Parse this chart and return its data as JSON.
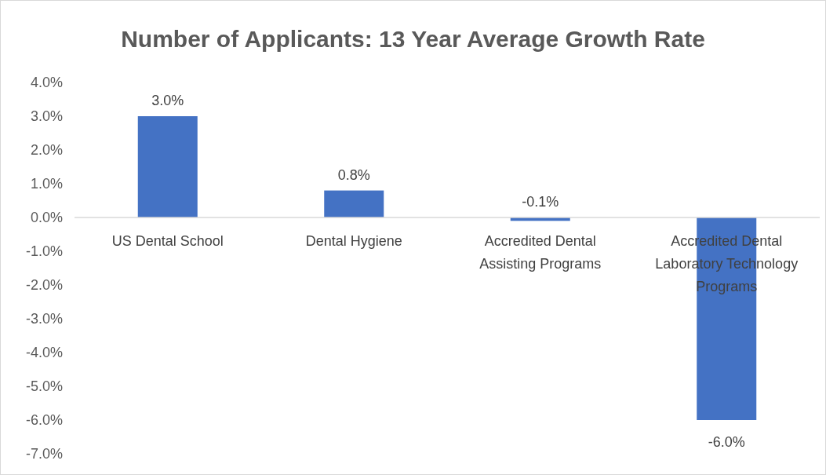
{
  "chart_data": {
    "type": "bar",
    "title": "Number of Applicants: 13 Year Average Growth Rate",
    "categories": [
      "US Dental School",
      "Dental Hygiene",
      "Accredited Dental Assisting Programs",
      "Accredited Dental Laboratory Technology Programs"
    ],
    "values": [
      3.0,
      0.8,
      -0.1,
      -6.0
    ],
    "color": "#4472c4",
    "value_labels": [
      "3.0%",
      "0.8%",
      "-0.1%",
      "-6.0%"
    ],
    "ylim": [
      -7,
      4
    ],
    "yticks": [
      {
        "value": 4,
        "label": "4.0%"
      },
      {
        "value": 3,
        "label": "3.0%"
      },
      {
        "value": 2,
        "label": "2.0%"
      },
      {
        "value": 1,
        "label": "1.0%"
      },
      {
        "value": 0,
        "label": "0.0%"
      },
      {
        "value": -1,
        "label": "-1.0%"
      },
      {
        "value": -2,
        "label": "-2.0%"
      },
      {
        "value": -3,
        "label": "-3.0%"
      },
      {
        "value": -4,
        "label": "-4.0%"
      },
      {
        "value": -5,
        "label": "-5.0%"
      },
      {
        "value": -6,
        "label": "-6.0%"
      },
      {
        "value": -7,
        "label": "-7.0%"
      }
    ],
    "grid": false
  }
}
